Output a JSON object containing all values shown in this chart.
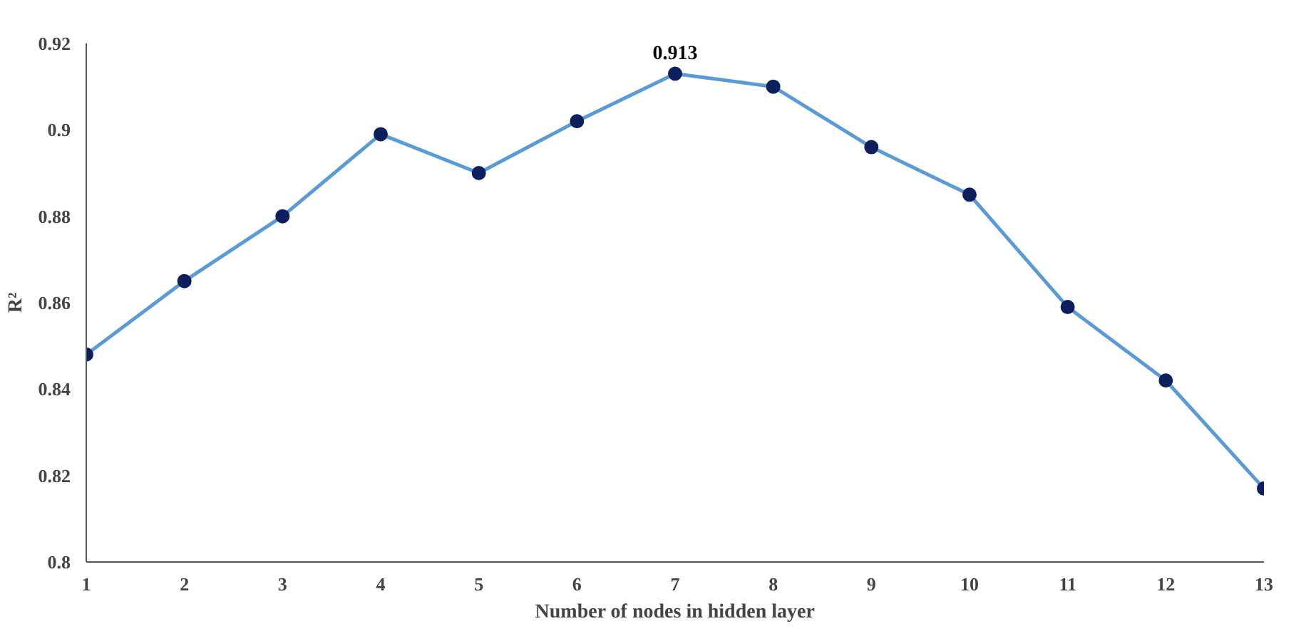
{
  "chart_data": {
    "type": "line",
    "xlabel": "Number of nodes in hidden layer",
    "ylabel": "R²",
    "x": [
      1,
      2,
      3,
      4,
      5,
      6,
      7,
      8,
      9,
      10,
      11,
      12,
      13
    ],
    "series": [
      {
        "color": "#5b9bd5",
        "values": [
          0.848,
          0.865,
          0.88,
          0.899,
          0.89,
          0.902,
          0.913,
          0.91,
          0.896,
          0.885,
          0.859,
          0.842,
          0.817
        ],
        "marker": "none"
      },
      {
        "type": "scatter",
        "color": "#0d1f5c",
        "values": [
          0.848,
          0.865,
          0.88,
          0.899,
          0.89,
          0.902,
          0.913,
          0.91,
          0.896,
          0.885,
          0.859,
          0.842,
          0.817
        ],
        "value_labels": [
          null,
          null,
          null,
          null,
          null,
          null,
          "0.913",
          null,
          null,
          null,
          null,
          null,
          null
        ]
      }
    ],
    "xlim": [
      1,
      13
    ],
    "xticks": [
      1,
      2,
      3,
      4,
      5,
      6,
      7,
      8,
      9,
      10,
      11,
      12,
      13
    ],
    "ylim": [
      0.8,
      0.92
    ],
    "yticks": [
      0.8,
      0.82,
      0.84,
      0.86,
      0.88,
      0.9,
      0.92
    ],
    "marker": "circle",
    "line_style": "solid",
    "grid": false
  }
}
